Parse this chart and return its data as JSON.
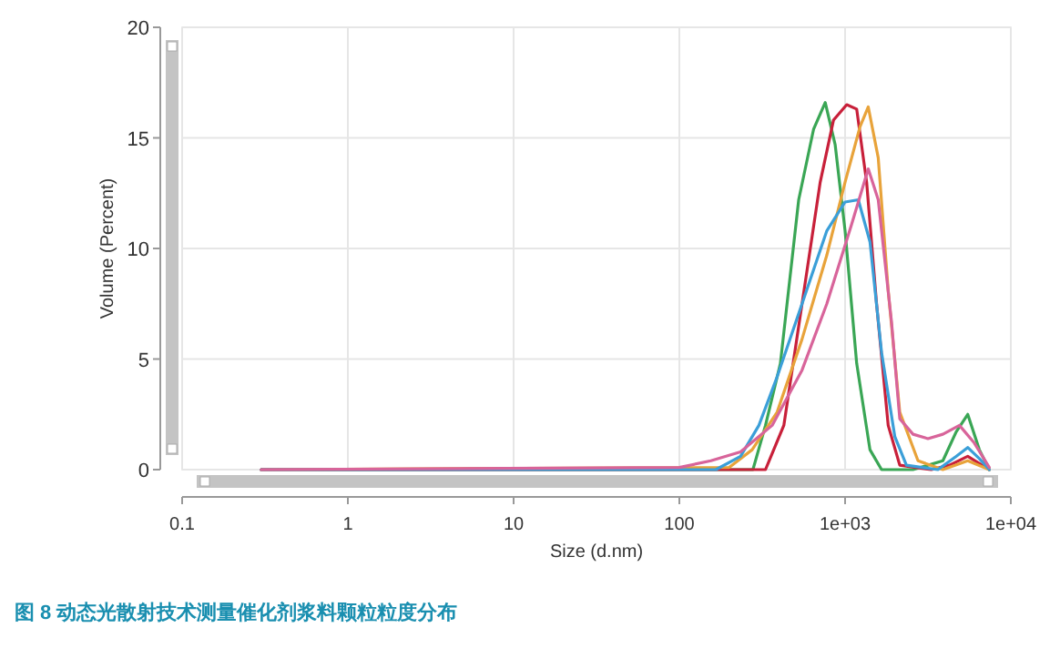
{
  "chart_data": {
    "type": "line",
    "xlabel": "Size (d.nm)",
    "ylabel": "Volume (Percent)",
    "log": "x",
    "xlim": [
      0.1,
      10000
    ],
    "ylim": [
      0,
      20
    ],
    "xticks": [
      0.1,
      1,
      10,
      100,
      {
        "value": 1000,
        "label": "1e+03"
      },
      {
        "value": 10000,
        "label": "1e+04"
      }
    ],
    "yticks": [
      0,
      5,
      10,
      15,
      20
    ],
    "grid": true,
    "marker": "none",
    "line_style": "solid",
    "annotations": [
      "图 8 动态光散射技术测量催化剂浆料颗粒粒度分布"
    ],
    "series": [
      {
        "color": "#3aa655",
        "x": [
          0.3,
          278,
          331,
          407,
          525,
          646,
          759,
          871,
          1000,
          1175,
          1413,
          1660,
          2570,
          3890,
          4677,
          5495,
          6457,
          7413
        ],
        "values": [
          0,
          0,
          2.0,
          4.8,
          12.2,
          15.4,
          16.6,
          14.7,
          10.8,
          4.8,
          0.9,
          0,
          0,
          0.4,
          1.7,
          2.5,
          0.9,
          0
        ]
      },
      {
        "color": "#c8203a",
        "x": [
          0.3,
          331,
          427,
          550,
          708,
          851,
          1023,
          1175,
          1349,
          1549,
          1820,
          2138,
          3311,
          4266,
          5495,
          7413
        ],
        "values": [
          0,
          0,
          2.0,
          7.5,
          13.0,
          15.8,
          16.5,
          16.3,
          13.0,
          7.5,
          2.0,
          0.2,
          0,
          0.2,
          0.6,
          0
        ]
      },
      {
        "color": "#e8a33a",
        "x": [
          0.3,
          200,
          275,
          389,
          550,
          776,
          1000,
          1230,
          1380,
          1585,
          1820,
          2138,
          2754,
          3890,
          5495,
          7413
        ],
        "values": [
          0,
          0.1,
          0.9,
          2.6,
          5.9,
          9.7,
          13.0,
          15.5,
          16.4,
          14.1,
          8.1,
          2.6,
          0.4,
          0,
          0.4,
          0
        ]
      },
      {
        "color": "#3b9fd8",
        "x": [
          0.3,
          166,
          234,
          302,
          389,
          550,
          776,
          1000,
          1202,
          1413,
          1660,
          1995,
          2344,
          3631,
          4677,
          5495,
          6457,
          7413
        ],
        "values": [
          0,
          0,
          0.6,
          2.0,
          4.2,
          7.5,
          10.8,
          12.1,
          12.2,
          10.3,
          5.3,
          1.5,
          0.2,
          0,
          0.6,
          1.0,
          0.5,
          0
        ]
      },
      {
        "color": "#d8649a",
        "x": [
          0.3,
          100,
          155,
          234,
          363,
          550,
          776,
          1096,
          1380,
          1585,
          1905,
          2138,
          2570,
          3162,
          3890,
          4898,
          6026,
          7413
        ],
        "values": [
          0,
          0.1,
          0.4,
          0.8,
          2.0,
          4.5,
          7.5,
          11.1,
          13.6,
          12.2,
          6.7,
          2.3,
          1.6,
          1.4,
          1.6,
          2.0,
          1.2,
          0.1
        ]
      }
    ]
  }
}
